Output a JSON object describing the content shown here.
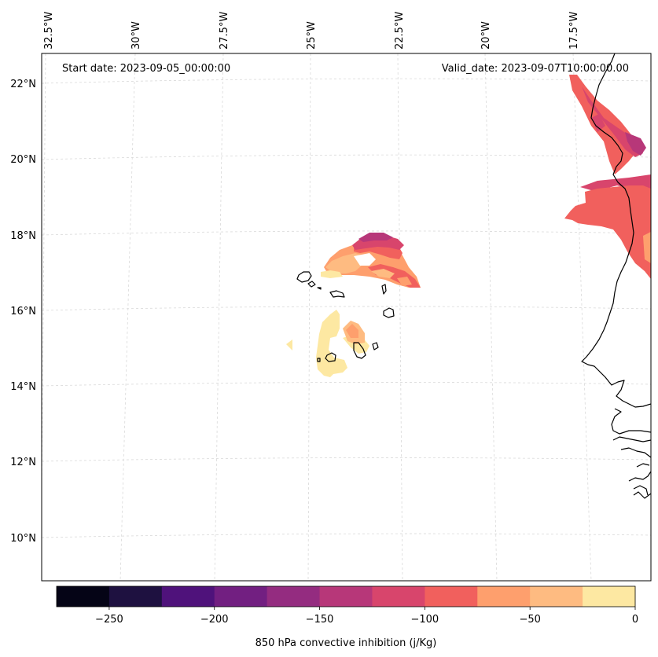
{
  "map": {
    "start_label": "Start date: 2023-09-05_00:00:00",
    "valid_label": "Valid_date: 2023-09-07T10:00:00.00",
    "lon_labels": [
      "32.5°W",
      "30°W",
      "27.5°W",
      "25°W",
      "22.5°W",
      "20°W",
      "17.5°W"
    ],
    "lat_labels": [
      "22°N",
      "20°N",
      "18°N",
      "16°N",
      "14°N",
      "12°N",
      "10°N"
    ]
  },
  "colorbar": {
    "label": "850 hPa convective inhibition (j/Kg)",
    "ticks": [
      "−250",
      "−200",
      "−150",
      "−100",
      "−50",
      "0"
    ],
    "tick_values": [
      -250,
      -200,
      -150,
      -100,
      -50,
      0
    ],
    "range": [
      -275,
      0
    ],
    "levels": [
      -275,
      -250,
      -225,
      -200,
      -175,
      -150,
      -125,
      -100,
      -75,
      -50,
      -25,
      0
    ],
    "colors": [
      "#050416",
      "#1e1140",
      "#4f127b",
      "#721f81",
      "#942c80",
      "#b73779",
      "#d8456c",
      "#f1605d",
      "#fe9f6d",
      "#febb81",
      "#fde8a2"
    ]
  },
  "colors": {
    "band_minus_150": "#b73779",
    "band_minus_125": "#d8456c",
    "band_minus_100": "#f1605d",
    "band_minus_75": "#fe9f6d",
    "band_minus_50": "#febb81",
    "band_minus_25": "#fde8a2",
    "gridline": "#d9d9d9",
    "coastline": "#000000"
  }
}
